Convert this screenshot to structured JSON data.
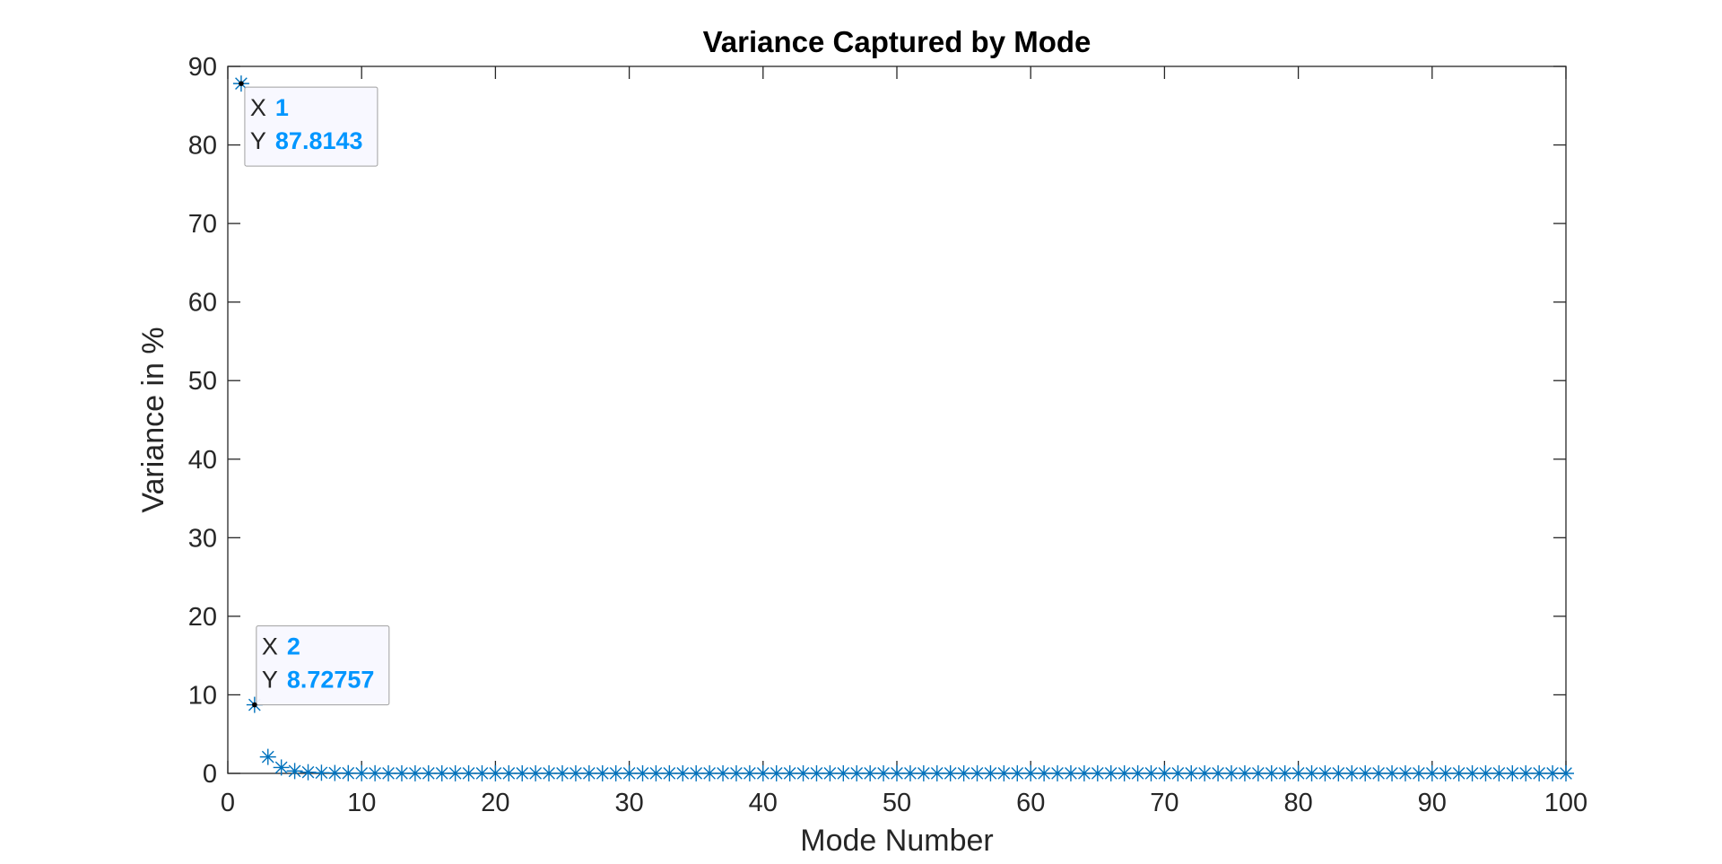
{
  "chart_data": {
    "type": "scatter",
    "title": "Variance Captured by Mode",
    "xlabel": "Mode Number",
    "ylabel": "Variance in %",
    "xlim": [
      0,
      100
    ],
    "ylim": [
      0,
      90
    ],
    "xticks": [
      0,
      10,
      20,
      30,
      40,
      50,
      60,
      70,
      80,
      90,
      100
    ],
    "yticks": [
      0,
      10,
      20,
      30,
      40,
      50,
      60,
      70,
      80,
      90
    ],
    "marker": "asterisk",
    "series_color": "#0072BD",
    "datatip_color": "#0096FF",
    "grid": false,
    "x": [
      1,
      2,
      3,
      4,
      5,
      6,
      7,
      8,
      9,
      10,
      11,
      12,
      13,
      14,
      15,
      16,
      17,
      18,
      19,
      20,
      21,
      22,
      23,
      24,
      25,
      26,
      27,
      28,
      29,
      30,
      31,
      32,
      33,
      34,
      35,
      36,
      37,
      38,
      39,
      40,
      41,
      42,
      43,
      44,
      45,
      46,
      47,
      48,
      49,
      50,
      51,
      52,
      53,
      54,
      55,
      56,
      57,
      58,
      59,
      60,
      61,
      62,
      63,
      64,
      65,
      66,
      67,
      68,
      69,
      70,
      71,
      72,
      73,
      74,
      75,
      76,
      77,
      78,
      79,
      80,
      81,
      82,
      83,
      84,
      85,
      86,
      87,
      88,
      89,
      90,
      91,
      92,
      93,
      94,
      95,
      96,
      97,
      98,
      99,
      100
    ],
    "y": [
      87.8143,
      8.72757,
      2.1,
      0.75,
      0.3,
      0.15,
      0.08,
      0.05,
      0.03,
      0.02,
      0.02,
      0.01,
      0.01,
      0.01,
      0.01,
      0.01,
      0.01,
      0.01,
      0.01,
      0.01,
      0.01,
      0.01,
      0.01,
      0.01,
      0.01,
      0.01,
      0.01,
      0.01,
      0.01,
      0.01,
      0.01,
      0.01,
      0.01,
      0.01,
      0.01,
      0.01,
      0.01,
      0.01,
      0.01,
      0.01,
      0.01,
      0.01,
      0.01,
      0.01,
      0.01,
      0.01,
      0.01,
      0.01,
      0.01,
      0.01,
      0.01,
      0.01,
      0.01,
      0.01,
      0.01,
      0.01,
      0.01,
      0.01,
      0.01,
      0.01,
      0.01,
      0.01,
      0.01,
      0.01,
      0.01,
      0.01,
      0.01,
      0.01,
      0.01,
      0.01,
      0.01,
      0.01,
      0.01,
      0.01,
      0.01,
      0.01,
      0.01,
      0.01,
      0.01,
      0.01,
      0.01,
      0.01,
      0.01,
      0.01,
      0.01,
      0.01,
      0.01,
      0.01,
      0.01,
      0.01,
      0.01,
      0.01,
      0.01,
      0.01,
      0.01,
      0.01,
      0.01,
      0.01,
      0.01,
      0.0
    ],
    "datatips": [
      {
        "x_key": "X",
        "x_value": "1",
        "y_key": "Y",
        "y_value": "87.8143",
        "x": 1,
        "y": 87.8143
      },
      {
        "x_key": "X",
        "x_value": "2",
        "y_key": "Y",
        "y_value": "8.72757",
        "x": 2,
        "y": 8.72757
      }
    ]
  }
}
